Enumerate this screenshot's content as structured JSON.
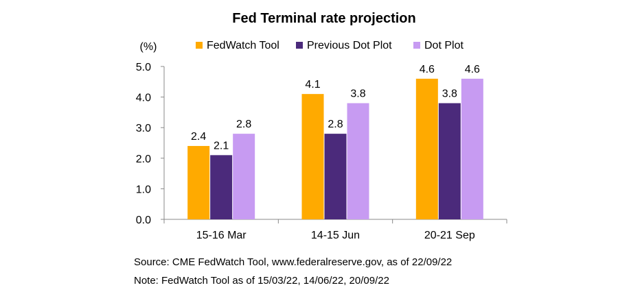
{
  "chart_data": {
    "type": "bar",
    "title": "Fed Terminal rate projection",
    "unit_label": "(%)",
    "categories": [
      "15-16 Mar",
      "14-15 Jun",
      "20-21 Sep"
    ],
    "series": [
      {
        "name": "FedWatch Tool",
        "color": "#FFAA00",
        "values": [
          2.4,
          4.1,
          4.6
        ]
      },
      {
        "name": "Previous Dot Plot",
        "color": "#4B2A7B",
        "values": [
          2.1,
          2.8,
          3.8
        ]
      },
      {
        "name": "Dot Plot",
        "color": "#C79BF2",
        "values": [
          2.8,
          3.8,
          4.6
        ]
      }
    ],
    "data_label_texts": [
      [
        "2.4",
        "4.1",
        "4.6"
      ],
      [
        "2.1",
        "2.8",
        "3.8"
      ],
      [
        "2.8",
        "3.8",
        "4.6"
      ]
    ],
    "y_ticks": [
      "0.0",
      "1.0",
      "2.0",
      "3.0",
      "4.0",
      "5.0"
    ],
    "y_tick_values": [
      0,
      1,
      2,
      3,
      4,
      5
    ],
    "ylim": [
      0,
      5
    ],
    "grid": false,
    "legend_position": "top"
  },
  "notes": {
    "source": "Source: CME FedWatch Tool, www.federalreserve.gov, as of 22/09/22",
    "note": "Note: FedWatch Tool as of 15/03/22, 14/06/22, 20/09/22"
  }
}
